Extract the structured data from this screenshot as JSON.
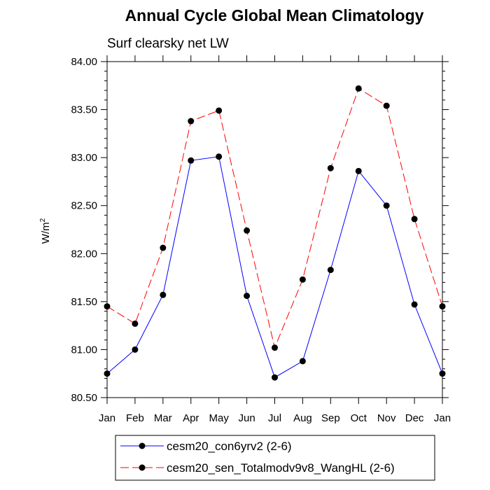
{
  "chart_data": {
    "type": "line",
    "title": "Annual Cycle Global Mean Climatology",
    "subtitle": "Surf clearsky net LW",
    "ylabel": "W/m",
    "ylabel_sup": "2",
    "xlabel": "",
    "categories": [
      "Jan",
      "Feb",
      "Mar",
      "Apr",
      "May",
      "Jun",
      "Jul",
      "Aug",
      "Sep",
      "Oct",
      "Nov",
      "Dec",
      "Jan"
    ],
    "ylim": [
      80.5,
      84.0
    ],
    "yticks": [
      80.5,
      81.0,
      81.5,
      82.0,
      82.5,
      83.0,
      83.5,
      84.0
    ],
    "ytick_labels": [
      "80.50",
      "81.00",
      "81.50",
      "82.00",
      "82.50",
      "83.00",
      "83.50",
      "84.00"
    ],
    "grid": false,
    "legend_position": "bottom",
    "series": [
      {
        "name": "cesm20_con6yrv2 (2-6)",
        "color": "#0000ff",
        "dash": "solid",
        "values": [
          80.75,
          81.0,
          81.57,
          82.97,
          83.01,
          81.56,
          80.71,
          80.88,
          81.83,
          82.86,
          82.5,
          81.47,
          80.75
        ]
      },
      {
        "name": "cesm20_sen_Totalmodv9v8_WangHL (2-6)",
        "color": "#ff0000",
        "dash": "dashed",
        "values": [
          81.45,
          81.27,
          82.06,
          83.38,
          83.49,
          82.24,
          81.02,
          81.73,
          82.89,
          83.72,
          83.54,
          82.36,
          81.45
        ]
      }
    ]
  }
}
